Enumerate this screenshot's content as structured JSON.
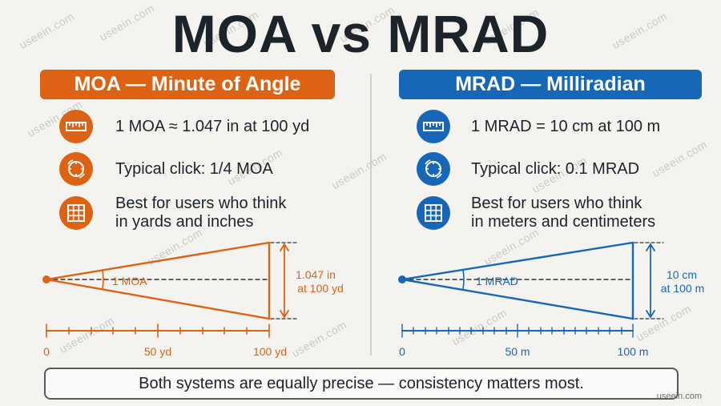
{
  "title": "MOA vs MRAD",
  "watermark_text": "useein.com",
  "colors": {
    "moa": "#de6214",
    "mrad": "#1767b8",
    "text": "#1c232c"
  },
  "moa": {
    "header": "MOA — Minute of Angle",
    "rows": [
      {
        "icon": "ruler-icon",
        "text": "1 MOA ≈ 1.047 in at 100 yd"
      },
      {
        "icon": "dial-icon",
        "text": "Typical click: 1/4 MOA"
      },
      {
        "icon": "grid-icon",
        "lines": [
          "Best for users who think",
          "in yards and inches"
        ]
      }
    ],
    "angle_label": "1 MOA",
    "height_label": [
      "1.047 in",
      "at 100 yd"
    ],
    "scale_labels": [
      "0",
      "50 yd",
      "100 yd"
    ]
  },
  "mrad": {
    "header": "MRAD — Milliradian",
    "rows": [
      {
        "icon": "ruler-icon",
        "text": "1 MRAD = 10 cm at 100 m"
      },
      {
        "icon": "dial-icon",
        "text": "Typical click: 0.1 MRAD"
      },
      {
        "icon": "grid-icon",
        "lines": [
          "Best for users who think",
          "in meters and centimeters"
        ]
      }
    ],
    "angle_label": "1 MRAD",
    "height_label": [
      "10 cm",
      "at 100 m"
    ],
    "scale_labels": [
      "0",
      "50 m",
      "100 m"
    ]
  },
  "footer": "Both systems are equally precise — consistency matters most.",
  "credit": "useein.com"
}
